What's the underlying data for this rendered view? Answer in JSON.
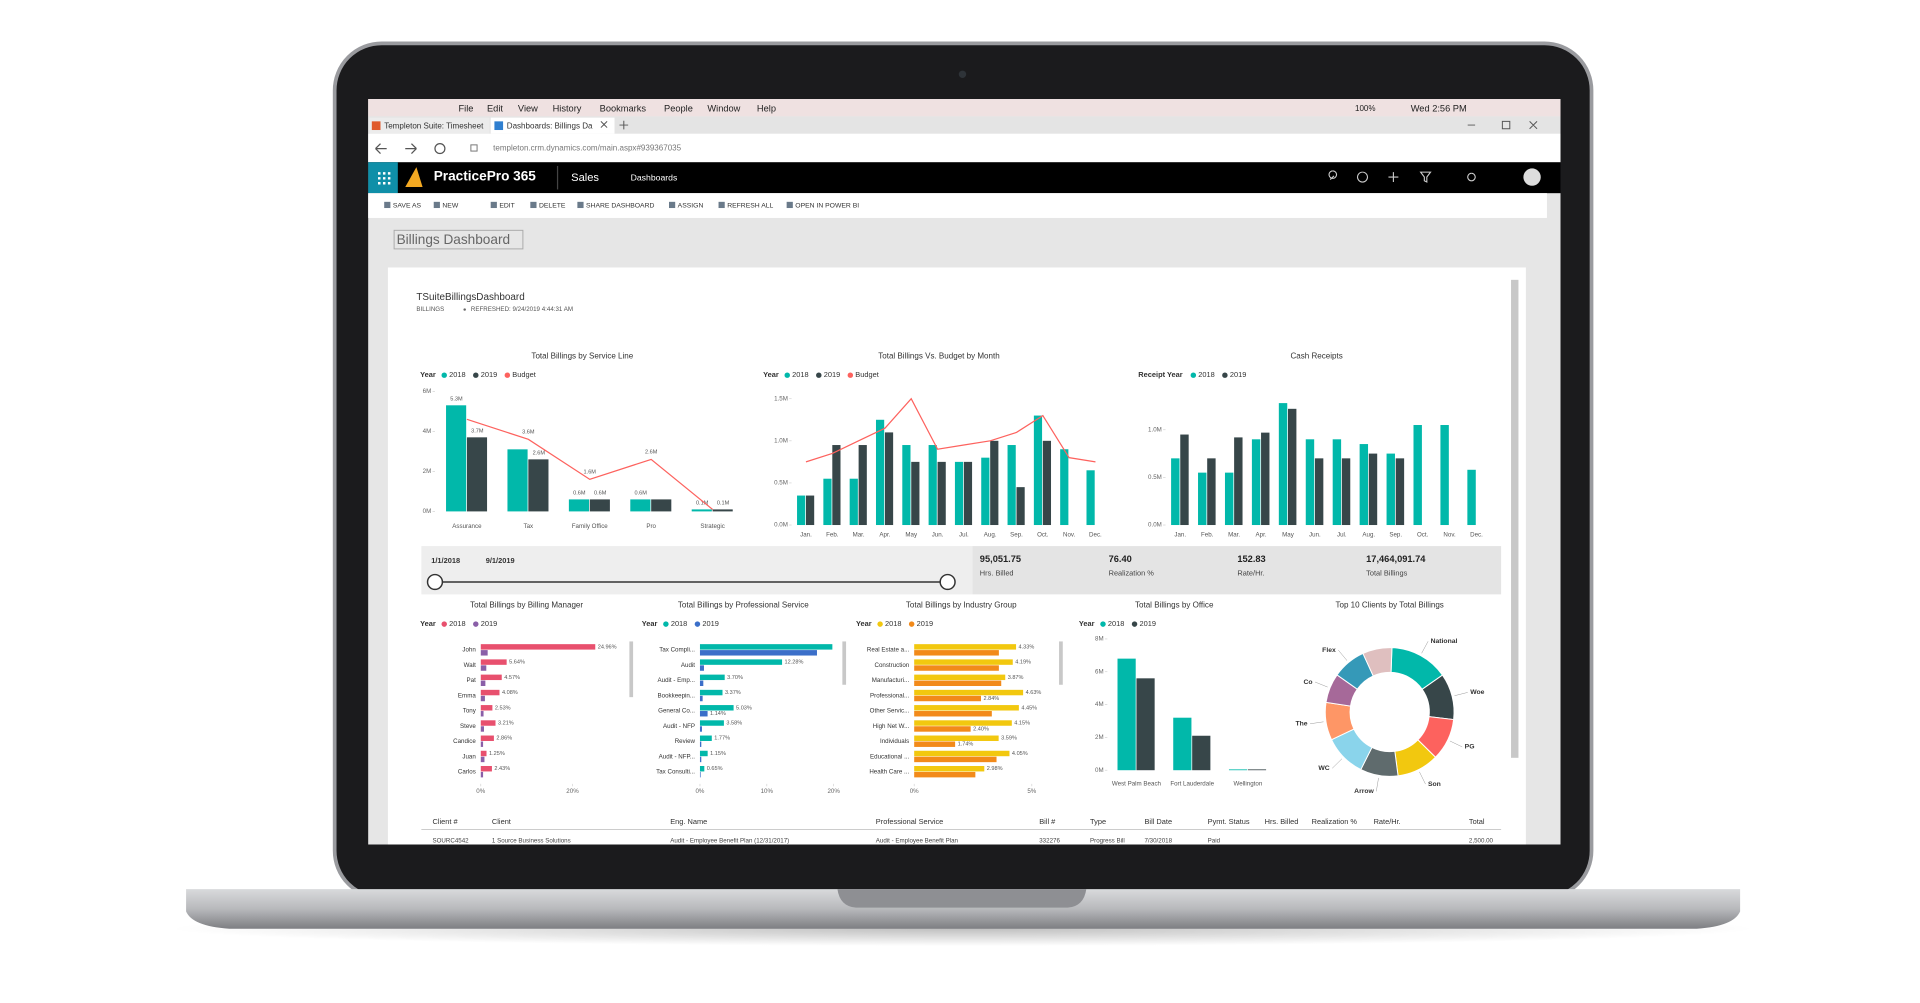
{
  "browser": {
    "menu": [
      "File",
      "Edit",
      "View",
      "History",
      "Bookmarks",
      "People",
      "Window",
      "Help"
    ],
    "zoom": "100%",
    "clock": "Wed 2:56 PM",
    "tabs": [
      "Templeton Suite: Timesheet",
      "Dashboards: Billings Da"
    ],
    "url": "templeton.crm.dynamics.com/main.aspx#939367035"
  },
  "app": {
    "brand": "PracticePro 365",
    "area": "Sales",
    "section": "Dashboards",
    "toolbar": [
      "SAVE AS",
      "NEW",
      "EDIT",
      "DELETE",
      "SHARE DASHBOARD",
      "ASSIGN",
      "REFRESH ALL",
      "OPEN IN POWER BI"
    ],
    "dashboard": "Billings Dashboard"
  },
  "report": {
    "title": "TSuiteBillingsDashboard",
    "page": "BILLINGS",
    "refreshed": "REFRESHED: 9/24/2019 4:44:31 AM"
  },
  "chart_data": [
    {
      "type": "bar",
      "title": "Total Billings by Service Line",
      "legend_title": "Year",
      "categories": [
        "Assurance",
        "Tax",
        "Family Office",
        "Pro",
        "Strategic"
      ],
      "series": [
        {
          "name": "2018",
          "color": "#01b8aa",
          "values": [
            5.3,
            3.1,
            0.6,
            0.6,
            0.1
          ],
          "value_labels": [
            "5.3M",
            null,
            "0.6M",
            "0.6M",
            "0.1M"
          ]
        },
        {
          "name": "2019",
          "color": "#374649",
          "values": [
            3.7,
            2.6,
            0.6,
            0.6,
            0.1
          ],
          "value_labels": [
            "3.7M",
            "2.6M",
            "0.6M",
            null,
            "0.1M"
          ]
        },
        {
          "name": "Budget",
          "type": "line",
          "color": "#fd625e",
          "values": [
            4.6,
            3.6,
            1.6,
            2.6,
            0.1
          ],
          "value_labels": [
            null,
            "3.6M",
            "1.6M",
            "2.6M",
            null
          ]
        }
      ],
      "ylim": [
        0,
        6
      ],
      "yticks": [
        {
          "value": 0,
          "label": "0M"
        },
        {
          "value": 2,
          "label": "2M"
        },
        {
          "value": 4,
          "label": "4M"
        },
        {
          "value": 6,
          "label": "6M"
        }
      ]
    },
    {
      "type": "bar",
      "title": "Total Billings Vs. Budget by Month",
      "legend_title": "Year",
      "categories": [
        "Jan.",
        "Feb.",
        "Mar.",
        "Apr.",
        "May",
        "Jun.",
        "Jul.",
        "Aug.",
        "Sep.",
        "Oct.",
        "Nov.",
        "Dec."
      ],
      "series": [
        {
          "name": "2018",
          "color": "#01b8aa",
          "values": [
            0.35,
            0.55,
            0.55,
            1.25,
            0.95,
            0.95,
            0.75,
            0.8,
            0.95,
            1.3,
            0.9,
            0.65
          ]
        },
        {
          "name": "2019",
          "color": "#374649",
          "values": [
            0.35,
            0.95,
            0.95,
            1.1,
            0.75,
            0.75,
            0.75,
            1.0,
            0.45,
            1.0,
            null,
            null
          ]
        },
        {
          "name": "Budget",
          "type": "line",
          "color": "#fd625e",
          "values": [
            0.75,
            0.85,
            1.0,
            1.15,
            1.5,
            0.9,
            0.95,
            1.0,
            1.1,
            1.3,
            0.8,
            0.75
          ]
        }
      ],
      "ylim": [
        0,
        1.5
      ],
      "yticks": [
        {
          "value": 0,
          "label": "0.0M"
        },
        {
          "value": 0.5,
          "label": "0.5M"
        },
        {
          "value": 1.0,
          "label": "1.0M"
        },
        {
          "value": 1.5,
          "label": "1.5M"
        }
      ]
    },
    {
      "type": "bar",
      "title": "Cash Receipts",
      "legend_title": "Receipt Year",
      "categories": [
        "Jan.",
        "Feb.",
        "Mar.",
        "Apr.",
        "May",
        "Jun.",
        "Jul.",
        "Aug.",
        "Sep.",
        "Oct.",
        "Nov.",
        "Dec."
      ],
      "series": [
        {
          "name": "2018",
          "color": "#01b8aa",
          "values": [
            0.7,
            0.55,
            0.55,
            0.9,
            1.28,
            0.9,
            0.9,
            0.85,
            0.75,
            1.05,
            1.05,
            0.58
          ]
        },
        {
          "name": "2019",
          "color": "#374649",
          "values": [
            0.95,
            0.7,
            0.92,
            0.97,
            1.22,
            0.7,
            0.7,
            0.75,
            0.7,
            null,
            null,
            null
          ]
        }
      ],
      "ylim": [
        0,
        1.3
      ],
      "yticks": [
        {
          "value": 0,
          "label": "0.0M"
        },
        {
          "value": 0.5,
          "label": "0.5M"
        },
        {
          "value": 1.0,
          "label": "1.0M"
        }
      ]
    },
    {
      "type": "bar",
      "orientation": "horizontal",
      "title": "Total Billings by Billing Manager",
      "legend_title": "Year",
      "categories": [
        "John",
        "Walt",
        "Pat",
        "Emma",
        "Tony",
        "Steve",
        "Candice",
        "Juan",
        "Carlos"
      ],
      "series": [
        {
          "name": "2018",
          "color": "#e8506e",
          "values": [
            24.96,
            5.64,
            4.57,
            4.08,
            2.53,
            3.21,
            2.86,
            1.25,
            2.43
          ],
          "value_labels": [
            "24.96%",
            "5.64%",
            "4.57%",
            "4.08%",
            "2.53%",
            "3.21%",
            "2.86%",
            "1.25%",
            "2.43%"
          ]
        },
        {
          "name": "2019",
          "color": "#8a5fa8",
          "values": [
            1.5,
            1.2,
            1.0,
            0.9,
            0.6,
            0.7,
            0.5,
            0.8,
            0.5
          ]
        }
      ],
      "xlim": [
        0,
        27
      ],
      "xticks": [
        {
          "value": 0,
          "label": "0%"
        },
        {
          "value": 20,
          "label": "20%"
        }
      ]
    },
    {
      "type": "bar",
      "orientation": "horizontal",
      "title": "Total Billings by Professional Service",
      "legend_title": "Year",
      "categories": [
        "Tax Compli...",
        "Audit",
        "Audit - Emp...",
        "Bookkeepin...",
        "General Co...",
        "Audit - NFP",
        "Review",
        "Audit - NFP...",
        "Tax Consulti..."
      ],
      "series": [
        {
          "name": "2018",
          "color": "#01b8aa",
          "values": [
            19.8,
            12.28,
            3.7,
            3.37,
            5.03,
            3.58,
            1.77,
            1.15,
            0.65
          ],
          "value_labels": [
            null,
            "12.28%",
            "3.70%",
            "3.37%",
            "5.03%",
            "3.58%",
            "1.77%",
            "1.15%",
            "0.65%"
          ]
        },
        {
          "name": "2019",
          "color": "#3b6fc9",
          "values": [
            17.5,
            0.6,
            0.5,
            0.4,
            1.14,
            0.3,
            0.2,
            0.2,
            0.1
          ],
          "value_labels": [
            null,
            null,
            null,
            null,
            "1.14%",
            null,
            null,
            null,
            null
          ]
        }
      ],
      "xlim": [
        0,
        20
      ],
      "xticks": [
        {
          "value": 0,
          "label": "0%"
        },
        {
          "value": 10,
          "label": "10%"
        },
        {
          "value": 20,
          "label": "20%"
        }
      ]
    },
    {
      "type": "bar",
      "orientation": "horizontal",
      "title": "Total Billings by Industry Group",
      "legend_title": "Year",
      "categories": [
        "Real Estate a...",
        "Construction",
        "Manufacturi...",
        "Professional...",
        "Other Servic...",
        "High Net W...",
        "Individuals",
        "Educational ...",
        "Health Care ..."
      ],
      "series": [
        {
          "name": "2018",
          "color": "#f2c80f",
          "values": [
            4.33,
            4.19,
            3.87,
            4.63,
            4.45,
            4.15,
            3.59,
            4.05,
            2.98
          ],
          "value_labels": [
            "4.33%",
            "4.19%",
            "3.87%",
            "4.63%",
            "4.45%",
            "4.15%",
            "3.59%",
            "4.05%",
            "2.98%"
          ]
        },
        {
          "name": "2019",
          "color": "#f28a1a",
          "values": [
            3.6,
            3.6,
            3.7,
            2.84,
            3.3,
            2.4,
            1.74,
            3.5,
            2.6
          ],
          "value_labels": [
            null,
            null,
            null,
            "2.84%",
            null,
            "2.40%",
            "1.74%",
            null,
            null
          ]
        }
      ],
      "xlim": [
        0,
        5
      ],
      "xticks": [
        {
          "value": 0,
          "label": "0%"
        },
        {
          "value": 5,
          "label": "5%"
        }
      ]
    },
    {
      "type": "bar",
      "title": "Total Billings by Office",
      "legend_title": "Year",
      "categories": [
        "West Palm Beach",
        "Fort Lauderdale",
        "Wellington"
      ],
      "series": [
        {
          "name": "2018",
          "color": "#01b8aa",
          "values": [
            6.8,
            3.2,
            0.05
          ]
        },
        {
          "name": "2019",
          "color": "#374649",
          "values": [
            5.6,
            2.1,
            0.05
          ]
        }
      ],
      "ylim": [
        0,
        8
      ],
      "yticks": [
        {
          "value": 0,
          "label": "0M"
        },
        {
          "value": 2,
          "label": "2M"
        },
        {
          "value": 4,
          "label": "4M"
        },
        {
          "value": 6,
          "label": "6M"
        },
        {
          "value": 8,
          "label": "8M"
        }
      ]
    },
    {
      "type": "donut",
      "title": "Top 10 Clients by Total Billings",
      "categories": [
        "National",
        "Woe",
        "PG",
        "Son",
        "Arrow",
        "WC",
        "The",
        "Co",
        "Flex",
        null
      ],
      "values": [
        14,
        11,
        10,
        10,
        9,
        10,
        9,
        7,
        8,
        7
      ],
      "colors": [
        "#01b8aa",
        "#374649",
        "#fd625e",
        "#f2c80f",
        "#5f6b6d",
        "#8ad4eb",
        "#fe9666",
        "#a66999",
        "#3599b8",
        "#dfbfbf"
      ]
    }
  ],
  "slicer": {
    "start": "1/1/2018",
    "end": "9/1/2019"
  },
  "cards": [
    {
      "value": "95,051.75",
      "label": "Hrs. Billed"
    },
    {
      "value": "76.40",
      "label": "Realization %"
    },
    {
      "value": "152.83",
      "label": "Rate/Hr."
    },
    {
      "value": "17,464,091.74",
      "label": "Total Billings"
    }
  ],
  "table": {
    "columns": [
      "Client #",
      "Client",
      "Eng. Name",
      "Professional Service",
      "Bill #",
      "Type",
      "Bill Date",
      "Pymt. Status",
      "Hrs. Billed",
      "Realization %",
      "Rate/Hr.",
      "Total"
    ],
    "rows": [
      [
        "SOURC4542",
        "1 Source Business Solutions",
        "Audit - Employee Benefit Plan (12/31/2017)",
        "Audit - Employee Benefit Plan",
        "332276",
        "Progress Bill",
        "7/30/2018",
        "Paid",
        null,
        null,
        null,
        "2,500.00"
      ]
    ]
  }
}
